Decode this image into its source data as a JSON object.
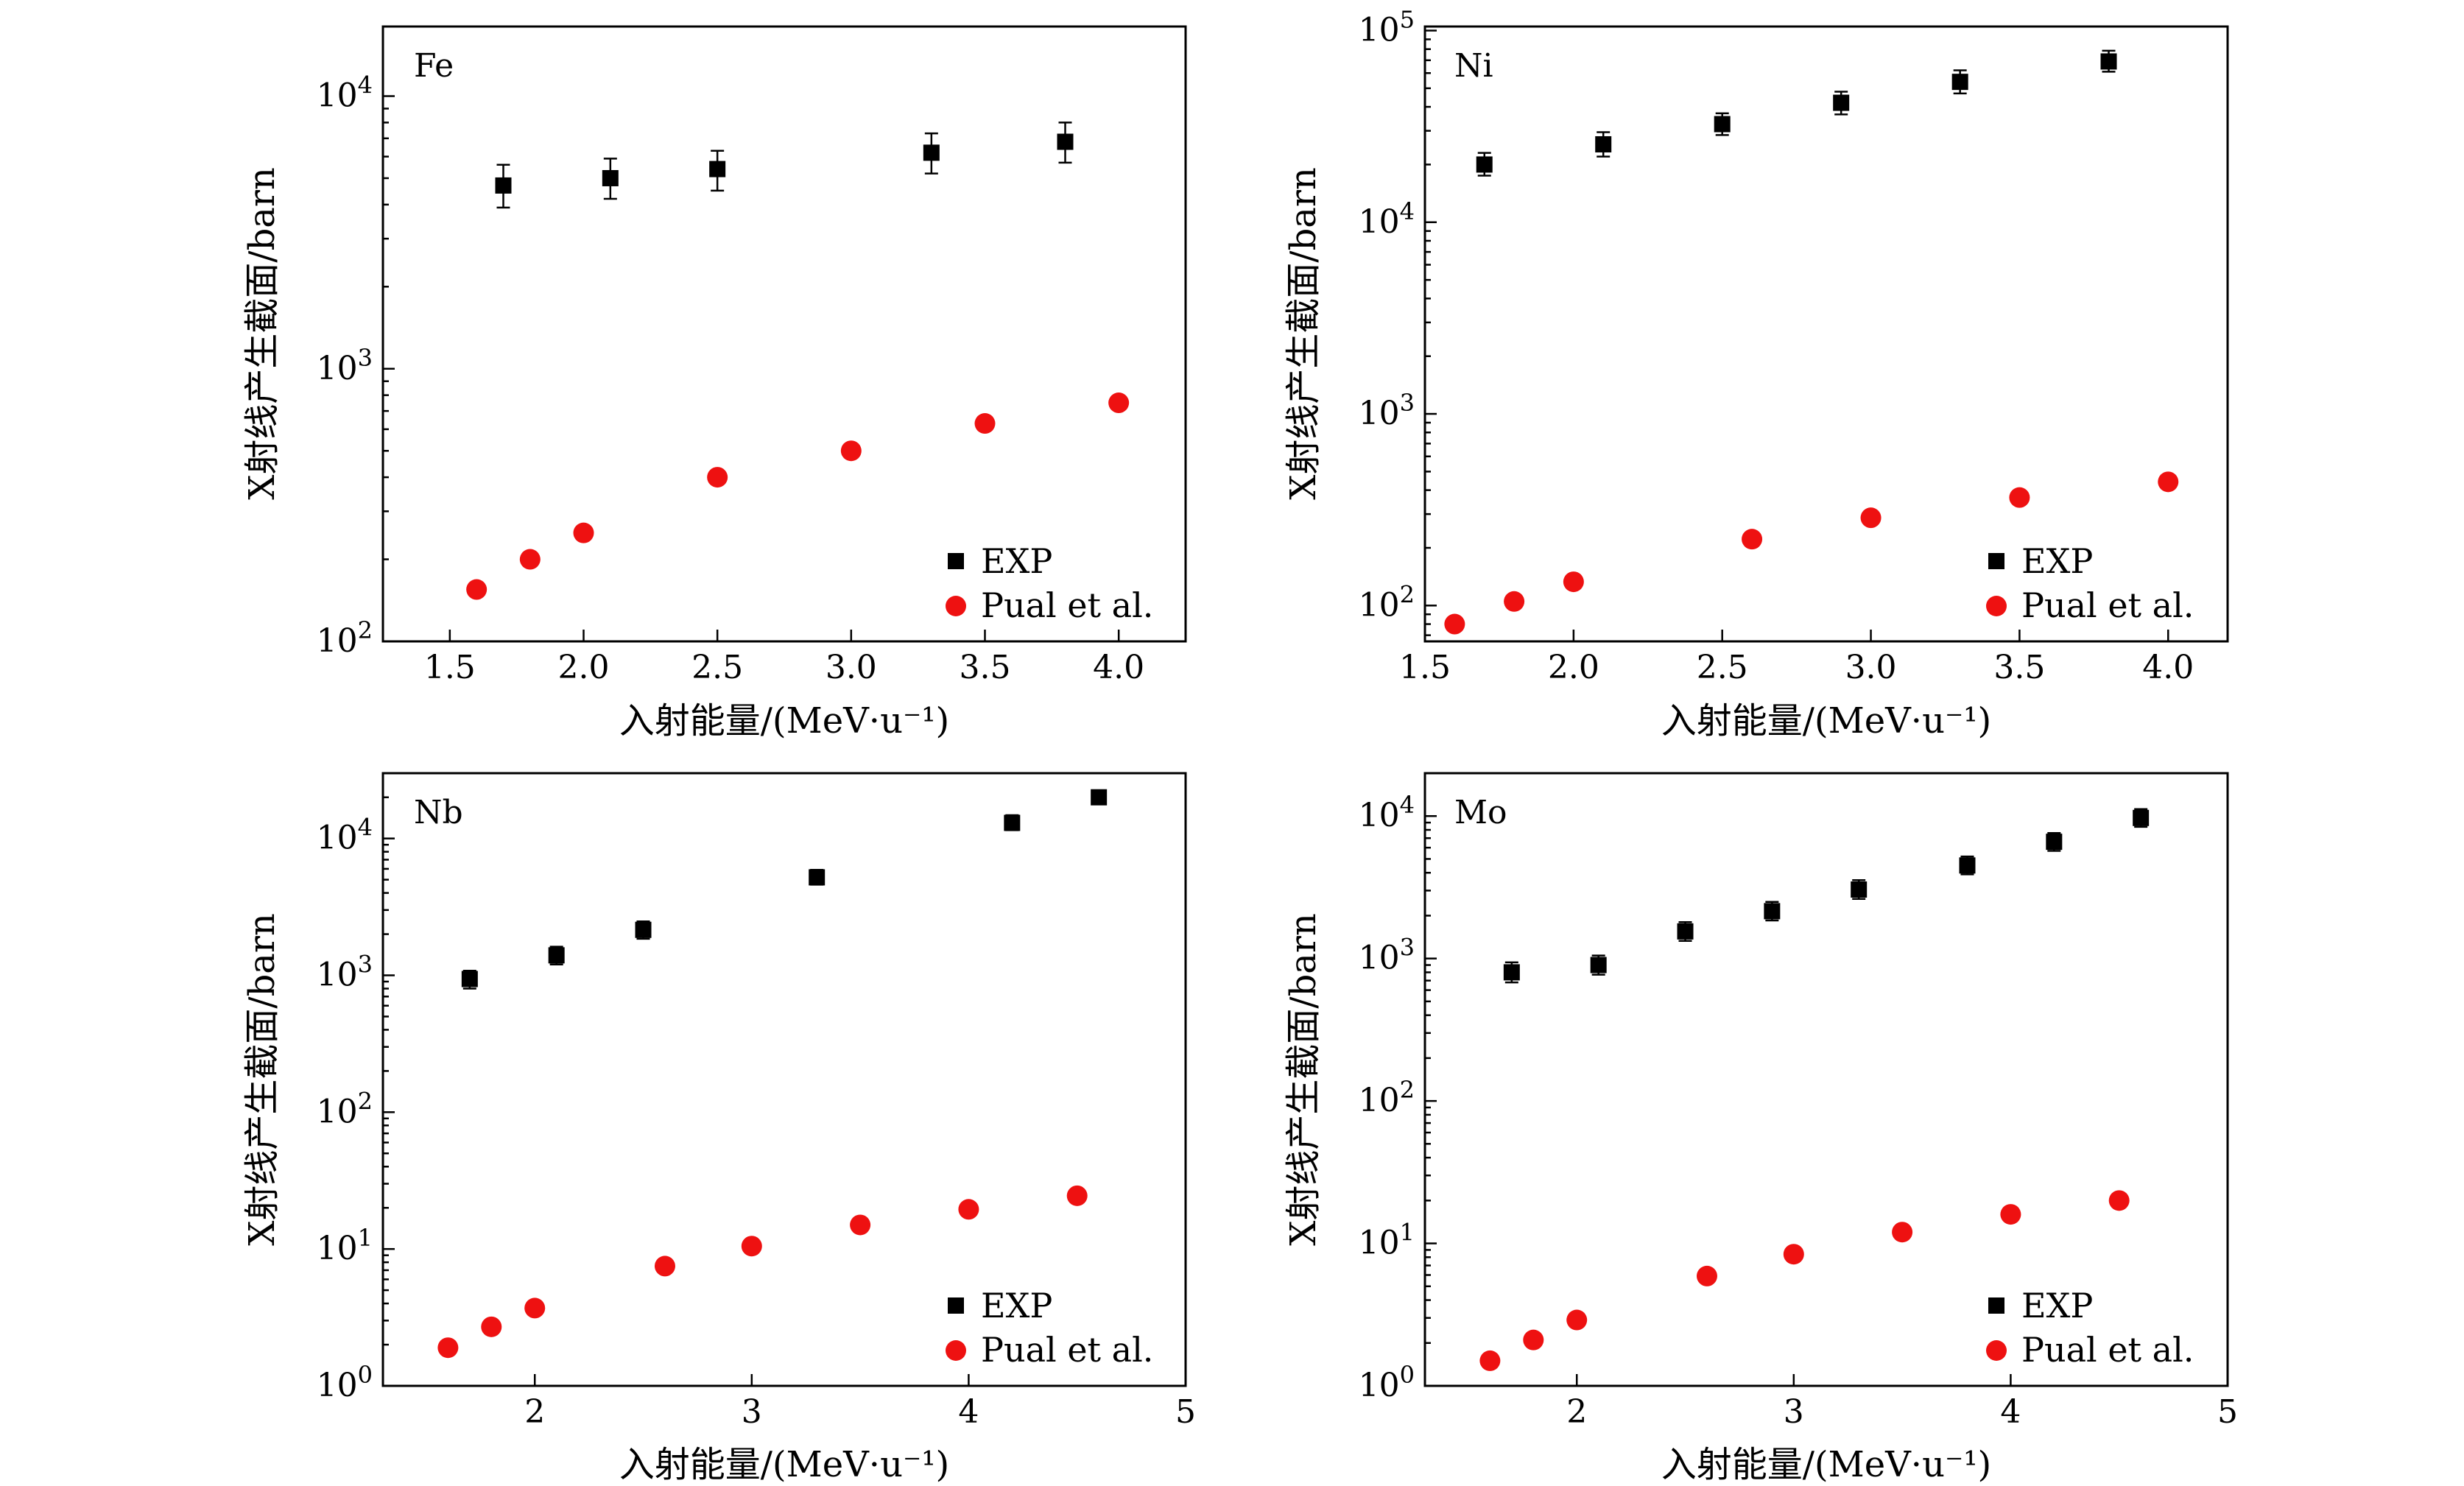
{
  "figure": {
    "legend_exp": "EXP",
    "legend_theory": "Pual et al.",
    "exp_color": "#000000",
    "theory_color": "#ee1111"
  },
  "chart_data": [
    {
      "type": "scatter",
      "panel": "Fe",
      "xlabel": "入射能量/(MeV·u⁻¹)",
      "ylabel": "X射线产生截面/barn",
      "xscale": "linear",
      "yscale": "log",
      "xlim": [
        1.25,
        4.25
      ],
      "ylim": [
        100,
        18000
      ],
      "xticks": [
        1.5,
        2.0,
        2.5,
        3.0,
        3.5,
        4.0
      ],
      "xtick_labels": [
        "1.5",
        "2.0",
        "2.5",
        "3.0",
        "3.5",
        "4.0"
      ],
      "yticks": [
        {
          "value": 100,
          "exp": "2"
        },
        {
          "value": 1000,
          "exp": "3"
        },
        {
          "value": 10000,
          "exp": "4"
        }
      ],
      "legend_position": "bottom-right",
      "series": [
        {
          "name": "EXP",
          "marker": "square",
          "color": "#000000",
          "x": [
            1.7,
            2.1,
            2.5,
            3.3,
            3.8
          ],
          "y": [
            4700,
            5000,
            5400,
            6200,
            6800
          ],
          "err_low": [
            3900,
            4200,
            4500,
            5200,
            5700
          ],
          "err_high": [
            5600,
            5900,
            6300,
            7300,
            8000
          ]
        },
        {
          "name": "Pual et al.",
          "marker": "circle",
          "color": "#ee1111",
          "x": [
            1.6,
            1.8,
            2.0,
            2.5,
            3.0,
            3.5,
            4.0
          ],
          "y": [
            155,
            200,
            250,
            400,
            500,
            630,
            750
          ]
        }
      ]
    },
    {
      "type": "scatter",
      "panel": "Ni",
      "xlabel": "入射能量/(MeV·u⁻¹)",
      "ylabel": "X射线产生截面/barn",
      "xscale": "linear",
      "yscale": "log",
      "xlim": [
        1.5,
        4.2
      ],
      "ylim": [
        65,
        105000
      ],
      "xticks": [
        1.5,
        2.0,
        2.5,
        3.0,
        3.5,
        4.0
      ],
      "xtick_labels": [
        "1.5",
        "2.0",
        "2.5",
        "3.0",
        "3.5",
        "4.0"
      ],
      "yticks": [
        {
          "value": 100,
          "exp": "2"
        },
        {
          "value": 1000,
          "exp": "3"
        },
        {
          "value": 10000,
          "exp": "4"
        },
        {
          "value": 100000,
          "exp": "5"
        }
      ],
      "legend_position": "bottom-right",
      "series": [
        {
          "name": "EXP",
          "marker": "square",
          "color": "#000000",
          "x": [
            1.7,
            2.1,
            2.5,
            2.9,
            3.3,
            3.8
          ],
          "y": [
            20000,
            25500,
            32500,
            42000,
            54000,
            69000
          ],
          "err_low": [
            17500,
            22000,
            28500,
            36500,
            47000,
            61000
          ],
          "err_high": [
            23000,
            29500,
            37000,
            48000,
            62000,
            78500
          ]
        },
        {
          "name": "Pual et al.",
          "marker": "circle",
          "color": "#ee1111",
          "x": [
            1.6,
            1.8,
            2.0,
            2.6,
            3.0,
            3.5,
            4.0
          ],
          "y": [
            80,
            105,
            133,
            222,
            287,
            366,
            442
          ]
        }
      ]
    },
    {
      "type": "scatter",
      "panel": "Nb",
      "xlabel": "入射能量/(MeV·u⁻¹)",
      "ylabel": "X射线产生截面/barn",
      "xscale": "linear",
      "yscale": "log",
      "xlim": [
        1.3,
        5.0
      ],
      "ylim": [
        1,
        30000
      ],
      "xticks": [
        2,
        3,
        4,
        5
      ],
      "xtick_labels": [
        "2",
        "3",
        "4",
        "5"
      ],
      "yticks": [
        {
          "value": 1,
          "exp": "0"
        },
        {
          "value": 10,
          "exp": "1"
        },
        {
          "value": 100,
          "exp": "2"
        },
        {
          "value": 1000,
          "exp": "3"
        },
        {
          "value": 10000,
          "exp": "4"
        }
      ],
      "legend_position": "bottom-right",
      "series": [
        {
          "name": "EXP",
          "marker": "square",
          "color": "#000000",
          "x": [
            1.7,
            2.1,
            2.5,
            3.3,
            4.2,
            4.6
          ],
          "y": [
            940,
            1400,
            2150,
            5200,
            13000,
            20000
          ],
          "err_low": [
            800,
            1200,
            1850,
            4600,
            11500,
            18000
          ],
          "err_high": [
            1080,
            1620,
            2480,
            5900,
            14800,
            22500
          ]
        },
        {
          "name": "Pual et al.",
          "marker": "circle",
          "color": "#ee1111",
          "x": [
            1.6,
            1.8,
            2.0,
            2.6,
            3.0,
            3.5,
            4.0,
            4.5
          ],
          "y": [
            1.9,
            2.7,
            3.7,
            7.5,
            10.5,
            15,
            19.5,
            24.5
          ]
        }
      ]
    },
    {
      "type": "scatter",
      "panel": "Mo",
      "xlabel": "入射能量/(MeV·u⁻¹)",
      "ylabel": "X射线产生截面/barn",
      "xscale": "linear",
      "yscale": "log",
      "xlim": [
        1.3,
        5.0
      ],
      "ylim": [
        1,
        20000
      ],
      "xticks": [
        2,
        3,
        4,
        5
      ],
      "xtick_labels": [
        "2",
        "3",
        "4",
        "5"
      ],
      "yticks": [
        {
          "value": 1,
          "exp": "0"
        },
        {
          "value": 10,
          "exp": "1"
        },
        {
          "value": 100,
          "exp": "2"
        },
        {
          "value": 1000,
          "exp": "3"
        },
        {
          "value": 10000,
          "exp": "4"
        }
      ],
      "legend_position": "bottom-right",
      "series": [
        {
          "name": "EXP",
          "marker": "square",
          "color": "#000000",
          "x": [
            1.7,
            2.1,
            2.5,
            2.9,
            3.3,
            3.8,
            4.2,
            4.6
          ],
          "y": [
            800,
            900,
            1550,
            2150,
            3050,
            4500,
            6600,
            9700
          ],
          "err_low": [
            680,
            770,
            1330,
            1850,
            2620,
            3900,
            5700,
            8400
          ],
          "err_high": [
            940,
            1050,
            1800,
            2500,
            3550,
            5200,
            7600,
            11200
          ]
        },
        {
          "name": "Pual et al.",
          "marker": "circle",
          "color": "#ee1111",
          "x": [
            1.6,
            1.8,
            2.0,
            2.6,
            3.0,
            3.5,
            4.0,
            4.5
          ],
          "y": [
            1.5,
            2.1,
            2.9,
            5.9,
            8.4,
            12,
            16,
            20
          ]
        }
      ]
    }
  ]
}
